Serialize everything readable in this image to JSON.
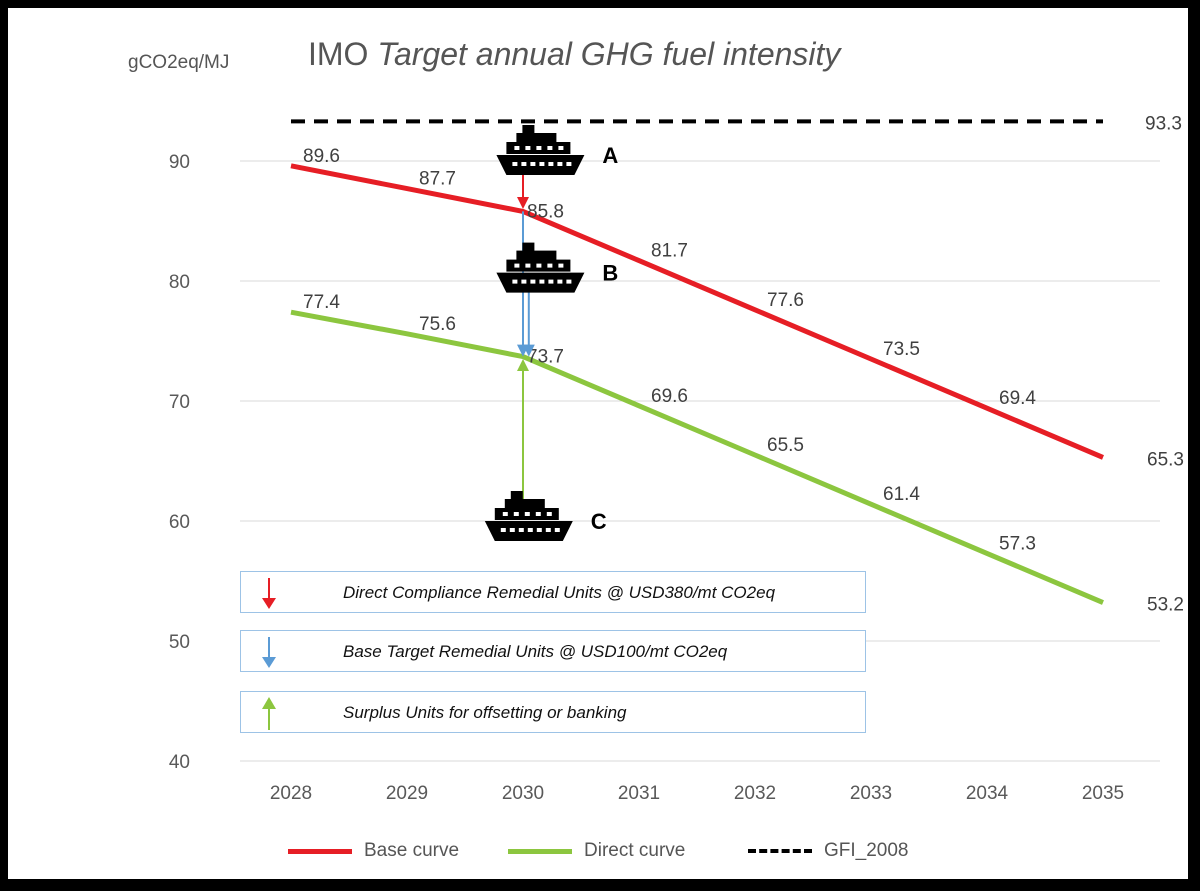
{
  "chart_data": {
    "type": "line",
    "title_prefix": "IMO ",
    "title_italic": "Target annual GHG fuel intensity",
    "ylabel": "gCO2eq/MJ",
    "x": [
      2028,
      2029,
      2030,
      2031,
      2032,
      2033,
      2034,
      2035
    ],
    "ylim": [
      40,
      95
    ],
    "yticks": [
      40,
      50,
      60,
      70,
      80,
      90
    ],
    "grid": true,
    "series": [
      {
        "name": "Base curve",
        "color": "#e61e25",
        "style": "solid",
        "values": [
          89.6,
          87.7,
          85.8,
          81.7,
          77.6,
          73.5,
          69.4,
          65.3
        ]
      },
      {
        "name": "Direct curve",
        "color": "#8cc63f",
        "style": "solid",
        "values": [
          77.4,
          75.6,
          73.7,
          69.6,
          65.5,
          61.4,
          57.3,
          53.2
        ]
      },
      {
        "name": "GFI_2008",
        "color": "#000000",
        "style": "dashed",
        "values": [
          93.3,
          93.3,
          93.3,
          93.3,
          93.3,
          93.3,
          93.3,
          93.3
        ],
        "label_last_only": true
      }
    ],
    "annotations": {
      "ships": [
        {
          "label": "A",
          "x": 2030.15,
          "y": 90.5
        },
        {
          "label": "B",
          "x": 2030.15,
          "y": 80.7
        },
        {
          "label": "C",
          "x": 2030.05,
          "y": 60.0
        }
      ],
      "arrows": [
        {
          "color": "#e61e25",
          "x": 2030.0,
          "from": 89.3,
          "to": 86.0
        },
        {
          "color": "#5b9bd5",
          "x": 2030.0,
          "from": 85.8,
          "to": 73.7
        },
        {
          "color": "#5b9bd5",
          "x": 2030.05,
          "from": 80.0,
          "to": 73.7
        },
        {
          "color": "#8cc63f",
          "x": 2030.0,
          "from": 60.5,
          "to": 73.5
        }
      ]
    },
    "legend_position": "bottom"
  },
  "legend_boxes": [
    {
      "text": "Direct Compliance Remedial Units @ USD380/mt CO2eq",
      "arrow_color": "#e61e25",
      "direction": "down"
    },
    {
      "text": "Base Target Remedial Units @ USD100/mt CO2eq",
      "arrow_color": "#5b9bd5",
      "direction": "down"
    },
    {
      "text": "Surplus Units for offsetting or banking",
      "arrow_color": "#8cc63f",
      "direction": "up"
    }
  ],
  "colors": {
    "axis_text": "#595959",
    "grid": "#d9d9d9",
    "box_border": "#9dc3e6"
  }
}
